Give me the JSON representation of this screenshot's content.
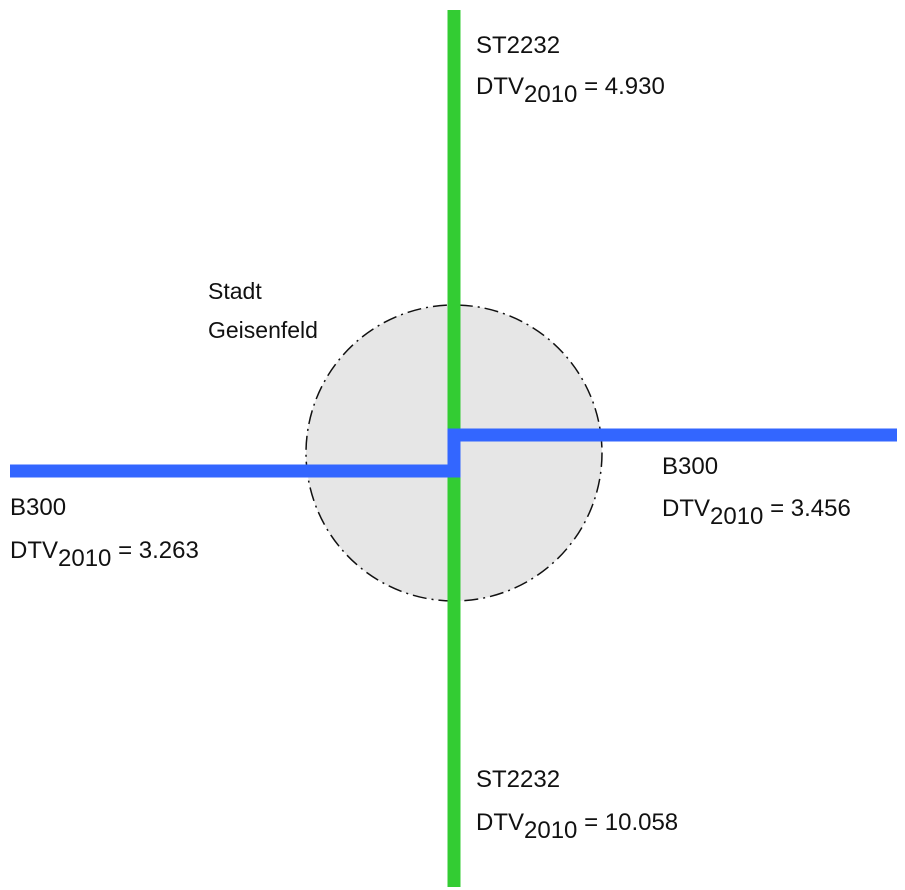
{
  "town": {
    "line1": "Stadt",
    "line2": "Geisenfeld",
    "fill_color": "#e6e6e6",
    "border_color": "#111111"
  },
  "roads": [
    {
      "id": "st2232-north",
      "name": "ST2232",
      "dtv_prefix": "DTV",
      "dtv_year": "2010",
      "dtv_value": "= 4.930",
      "color": "#33cc33"
    },
    {
      "id": "st2232-south",
      "name": "ST2232",
      "dtv_prefix": "DTV",
      "dtv_year": "2010",
      "dtv_value": "= 10.058",
      "color": "#33cc33"
    },
    {
      "id": "b300-west",
      "name": "B300",
      "dtv_prefix": "DTV",
      "dtv_year": "2010",
      "dtv_value": "= 3.263",
      "color": "#3366ff"
    },
    {
      "id": "b300-east",
      "name": "B300",
      "dtv_prefix": "DTV",
      "dtv_year": "2010",
      "dtv_value": "= 3.456",
      "color": "#3366ff"
    }
  ]
}
